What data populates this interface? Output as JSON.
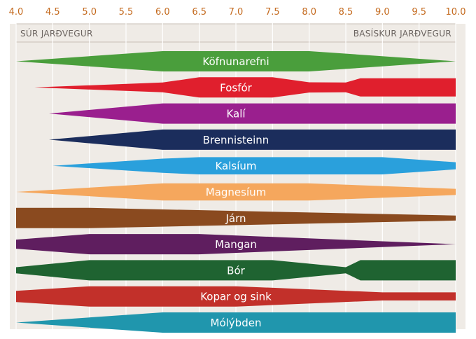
{
  "chart_data": {
    "type": "area",
    "x_ticks": [
      "4.0",
      "4.5",
      "5.0",
      "5.5",
      "6.0",
      "6.5",
      "7.0",
      "7.5",
      "8.0",
      "8.5",
      "9.0",
      "9.5",
      "10.0"
    ],
    "xlim": [
      4.0,
      10.0
    ],
    "grid": true,
    "header": {
      "left": "SÚR JARÐVEGUR",
      "right": "BASÍSKUR JARÐVEGUR"
    },
    "series": [
      {
        "name": "Köfnunarefni",
        "color": "#4a9e3c",
        "profile": [
          [
            4.0,
            0.0
          ],
          [
            6.0,
            1.0
          ],
          [
            8.0,
            1.0
          ],
          [
            10.0,
            0.0
          ]
        ]
      },
      {
        "name": "Fosfór",
        "color": "#e01f2d",
        "profile": [
          [
            4.25,
            0.0
          ],
          [
            6.0,
            0.48
          ],
          [
            6.5,
            1.0
          ],
          [
            7.5,
            1.0
          ],
          [
            8.0,
            0.5
          ],
          [
            8.5,
            0.48
          ],
          [
            8.7,
            0.9
          ],
          [
            10.0,
            0.9
          ]
        ]
      },
      {
        "name": "Kalí",
        "color": "#9a1f8e",
        "profile": [
          [
            4.45,
            0.0
          ],
          [
            6.0,
            1.0
          ],
          [
            10.0,
            1.0
          ]
        ]
      },
      {
        "name": "Brennisteinn",
        "color": "#1b2d5c",
        "profile": [
          [
            4.45,
            0.0
          ],
          [
            6.0,
            1.0
          ],
          [
            10.0,
            1.0
          ]
        ]
      },
      {
        "name": "Kalsíum",
        "color": "#2aa0dc",
        "profile": [
          [
            4.5,
            0.0
          ],
          [
            6.0,
            0.7
          ],
          [
            6.5,
            0.85
          ],
          [
            9.0,
            0.85
          ],
          [
            10.0,
            0.35
          ]
        ]
      },
      {
        "name": "Magnesíum",
        "color": "#f5a75d",
        "profile": [
          [
            4.0,
            0.0
          ],
          [
            6.0,
            0.85
          ],
          [
            8.0,
            0.85
          ],
          [
            10.0,
            0.3
          ]
        ]
      },
      {
        "name": "Járn",
        "color": "#8a4a1f",
        "profile": [
          [
            4.0,
            1.0
          ],
          [
            5.0,
            1.0
          ],
          [
            10.0,
            0.25
          ]
        ]
      },
      {
        "name": "Mangan",
        "color": "#5f1e5f",
        "profile": [
          [
            4.0,
            0.45
          ],
          [
            5.0,
            1.0
          ],
          [
            6.5,
            1.0
          ],
          [
            10.0,
            0.0
          ]
        ]
      },
      {
        "name": "Bór",
        "color": "#1f6331",
        "profile": [
          [
            4.0,
            0.3
          ],
          [
            5.0,
            1.0
          ],
          [
            7.5,
            1.0
          ],
          [
            8.5,
            0.3
          ],
          [
            8.7,
            1.0
          ],
          [
            10.0,
            1.0
          ]
        ]
      },
      {
        "name": "Kopar og sink",
        "color": "#c2302a",
        "profile": [
          [
            4.0,
            0.55
          ],
          [
            5.0,
            1.0
          ],
          [
            7.0,
            1.0
          ],
          [
            9.0,
            0.4
          ],
          [
            10.0,
            0.4
          ]
        ]
      },
      {
        "name": "Mólýbden",
        "color": "#2096ad",
        "profile": [
          [
            4.0,
            0.0
          ],
          [
            6.0,
            1.0
          ],
          [
            10.0,
            1.0
          ]
        ]
      }
    ]
  }
}
